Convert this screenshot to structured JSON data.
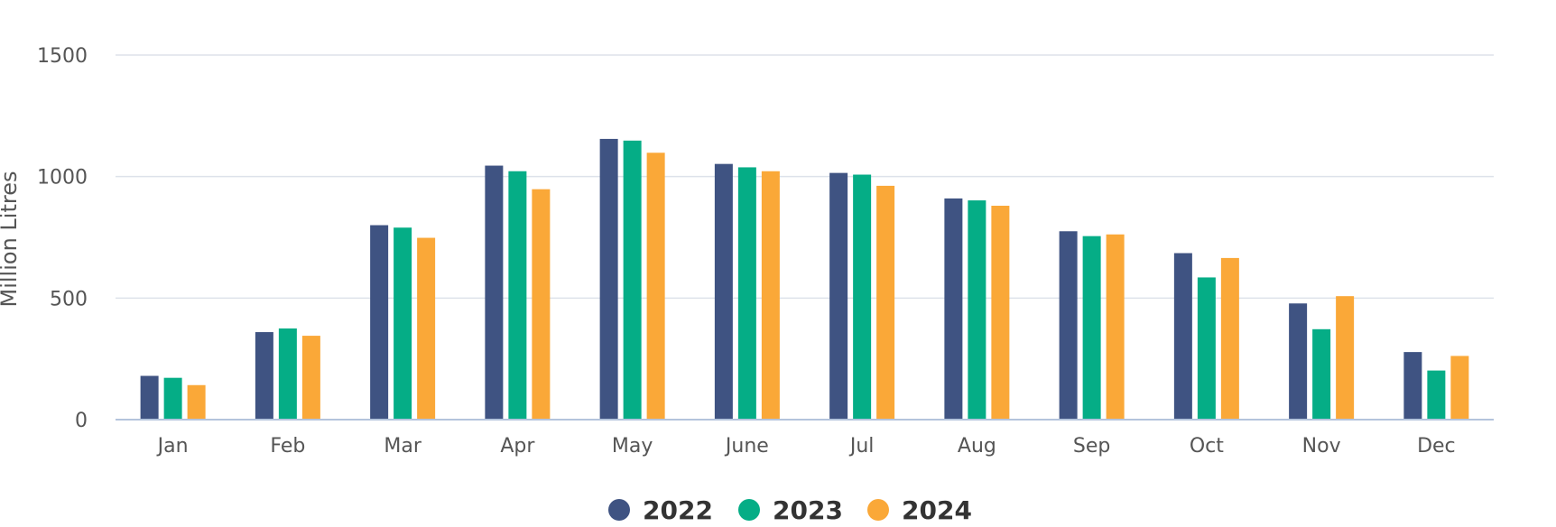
{
  "chart_data": {
    "type": "bar",
    "title": "",
    "xlabel": "",
    "ylabel": "Million Litres",
    "ylim": [
      0,
      1500
    ],
    "yticks": [
      0,
      500,
      1000,
      1500
    ],
    "grid": true,
    "legend_position": "bottom-center",
    "categories": [
      "Jan",
      "Feb",
      "Mar",
      "Apr",
      "May",
      "June",
      "Jul",
      "Aug",
      "Sep",
      "Oct",
      "Nov",
      "Dec"
    ],
    "series": [
      {
        "name": "2022",
        "color": "#3f5382",
        "values": [
          180,
          360,
          800,
          1045,
          1155,
          1052,
          1015,
          910,
          775,
          685,
          478,
          278
        ]
      },
      {
        "name": "2023",
        "color": "#05ad86",
        "values": [
          172,
          375,
          790,
          1022,
          1148,
          1038,
          1008,
          902,
          755,
          585,
          372,
          202
        ]
      },
      {
        "name": "2024",
        "color": "#faa838",
        "values": [
          142,
          345,
          748,
          948,
          1098,
          1022,
          962,
          880,
          762,
          665,
          508,
          262
        ]
      }
    ],
    "colors": {
      "grid": "#dde2ea",
      "baseline": "#b4c4dc",
      "label": "#555555"
    }
  }
}
